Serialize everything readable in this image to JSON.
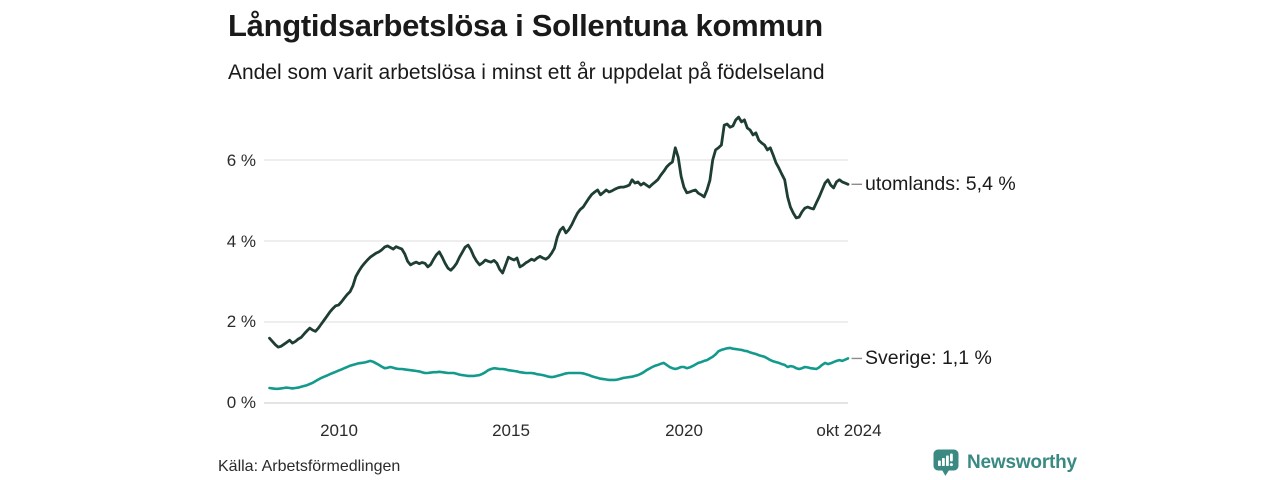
{
  "header": {
    "title": "Långtidsarbetslösa i Sollentuna kommun",
    "subtitle": "Andel som varit arbetslösa i minst ett år uppdelat på födelseland"
  },
  "footer": {
    "source": "Källa: Arbetsförmedlingen",
    "brand_name": "Newsworthy",
    "brand_icon": "bar-chart-speech-bubble",
    "brand_color": "#3a8a83"
  },
  "colors": {
    "grid": "#dcdcdc",
    "grid_zero": "#c9c9c9",
    "label_dash": "#8c8c8c",
    "text": "#1a1a1a"
  },
  "chart_data": {
    "type": "line",
    "title": "Långtidsarbetslösa i Sollentuna kommun",
    "subtitle": "Andel som varit arbetslösa i minst ett år uppdelat på födelseland",
    "unit": "percent",
    "frequency": "monthly",
    "x_start": "2008-01",
    "x_end": "2024-10",
    "x_tick_labels": [
      "2010",
      "2015",
      "2020",
      "okt 2024"
    ],
    "x_tick_years": [
      2010,
      2015,
      2020,
      2024.75
    ],
    "y_tick_display": [
      "6 %",
      "4 %",
      "2 %",
      "0 %"
    ],
    "y_tick_values": [
      6,
      4,
      2,
      0
    ],
    "ylim": [
      0,
      7.3
    ],
    "grid": "horizontal",
    "legend_position": "right-of-line-end",
    "series": [
      {
        "name": "utomlands",
        "label": "utomlands: 5,4 %",
        "last_value_display": "5,4 %",
        "color": "#1e3d33",
        "stroke_width": 2.8,
        "values": [
          1.6,
          1.52,
          1.44,
          1.38,
          1.4,
          1.45,
          1.5,
          1.55,
          1.48,
          1.52,
          1.58,
          1.62,
          1.7,
          1.78,
          1.85,
          1.8,
          1.77,
          1.85,
          1.95,
          2.05,
          2.15,
          2.25,
          2.33,
          2.4,
          2.42,
          2.5,
          2.59,
          2.68,
          2.75,
          2.9,
          3.12,
          3.25,
          3.36,
          3.45,
          3.53,
          3.6,
          3.65,
          3.7,
          3.73,
          3.78,
          3.85,
          3.88,
          3.84,
          3.8,
          3.86,
          3.83,
          3.8,
          3.68,
          3.5,
          3.41,
          3.45,
          3.48,
          3.44,
          3.47,
          3.45,
          3.36,
          3.42,
          3.55,
          3.66,
          3.73,
          3.6,
          3.45,
          3.33,
          3.28,
          3.35,
          3.45,
          3.6,
          3.72,
          3.85,
          3.9,
          3.78,
          3.62,
          3.5,
          3.41,
          3.46,
          3.53,
          3.5,
          3.48,
          3.52,
          3.45,
          3.3,
          3.21,
          3.4,
          3.6,
          3.56,
          3.53,
          3.58,
          3.36,
          3.4,
          3.46,
          3.5,
          3.55,
          3.52,
          3.58,
          3.62,
          3.58,
          3.55,
          3.6,
          3.7,
          3.82,
          4.1,
          4.27,
          4.34,
          4.2,
          4.28,
          4.4,
          4.55,
          4.69,
          4.78,
          4.84,
          4.95,
          5.06,
          5.15,
          5.21,
          5.26,
          5.14,
          5.2,
          5.26,
          5.21,
          5.24,
          5.28,
          5.31,
          5.33,
          5.33,
          5.35,
          5.38,
          5.51,
          5.43,
          5.46,
          5.38,
          5.43,
          5.38,
          5.33,
          5.4,
          5.46,
          5.52,
          5.63,
          5.72,
          5.83,
          5.9,
          5.95,
          6.3,
          6.07,
          5.6,
          5.33,
          5.19,
          5.21,
          5.24,
          5.26,
          5.18,
          5.14,
          5.09,
          5.26,
          5.5,
          6.0,
          6.25,
          6.3,
          6.37,
          6.86,
          6.89,
          6.81,
          6.84,
          6.99,
          7.06,
          6.94,
          6.99,
          6.79,
          6.74,
          6.62,
          6.67,
          6.49,
          6.42,
          6.37,
          6.25,
          6.3,
          6.12,
          5.93,
          5.8,
          5.65,
          5.51,
          5.09,
          4.84,
          4.69,
          4.57,
          4.59,
          4.72,
          4.81,
          4.84,
          4.81,
          4.79,
          4.94,
          5.09,
          5.26,
          5.43,
          5.51,
          5.38,
          5.31,
          5.46,
          5.51,
          5.46,
          5.43,
          5.4
        ]
      },
      {
        "name": "Sverige",
        "label": "Sverige: 1,1 %",
        "last_value_display": "1,1 %",
        "color": "#149a8d",
        "stroke_width": 2.6,
        "values": [
          0.37,
          0.36,
          0.35,
          0.35,
          0.36,
          0.37,
          0.38,
          0.37,
          0.36,
          0.37,
          0.38,
          0.4,
          0.42,
          0.44,
          0.47,
          0.5,
          0.54,
          0.58,
          0.62,
          0.65,
          0.68,
          0.71,
          0.74,
          0.77,
          0.8,
          0.83,
          0.86,
          0.89,
          0.92,
          0.94,
          0.96,
          0.98,
          0.99,
          1.0,
          1.02,
          1.04,
          1.02,
          0.98,
          0.94,
          0.9,
          0.86,
          0.87,
          0.89,
          0.87,
          0.85,
          0.84,
          0.84,
          0.83,
          0.82,
          0.81,
          0.8,
          0.79,
          0.78,
          0.76,
          0.74,
          0.74,
          0.75,
          0.76,
          0.76,
          0.77,
          0.76,
          0.75,
          0.74,
          0.74,
          0.74,
          0.72,
          0.7,
          0.69,
          0.68,
          0.67,
          0.67,
          0.67,
          0.68,
          0.69,
          0.72,
          0.76,
          0.81,
          0.84,
          0.86,
          0.85,
          0.84,
          0.84,
          0.83,
          0.81,
          0.8,
          0.79,
          0.78,
          0.76,
          0.75,
          0.74,
          0.74,
          0.74,
          0.73,
          0.71,
          0.7,
          0.69,
          0.67,
          0.65,
          0.64,
          0.65,
          0.67,
          0.69,
          0.71,
          0.73,
          0.74,
          0.74,
          0.74,
          0.74,
          0.74,
          0.73,
          0.71,
          0.69,
          0.66,
          0.64,
          0.62,
          0.6,
          0.59,
          0.58,
          0.57,
          0.57,
          0.57,
          0.58,
          0.6,
          0.62,
          0.63,
          0.64,
          0.65,
          0.67,
          0.69,
          0.72,
          0.76,
          0.81,
          0.85,
          0.89,
          0.92,
          0.94,
          0.97,
          0.99,
          0.94,
          0.89,
          0.86,
          0.84,
          0.86,
          0.89,
          0.89,
          0.86,
          0.88,
          0.91,
          0.95,
          0.99,
          1.01,
          1.04,
          1.06,
          1.1,
          1.14,
          1.2,
          1.28,
          1.31,
          1.33,
          1.35,
          1.36,
          1.34,
          1.33,
          1.32,
          1.31,
          1.29,
          1.28,
          1.25,
          1.23,
          1.21,
          1.18,
          1.16,
          1.14,
          1.1,
          1.06,
          1.03,
          1.01,
          0.99,
          0.96,
          0.94,
          0.89,
          0.91,
          0.9,
          0.86,
          0.84,
          0.86,
          0.89,
          0.88,
          0.86,
          0.85,
          0.84,
          0.88,
          0.94,
          0.99,
          0.96,
          0.98,
          1.01,
          1.04,
          1.06,
          1.04,
          1.07,
          1.1
        ]
      }
    ]
  }
}
